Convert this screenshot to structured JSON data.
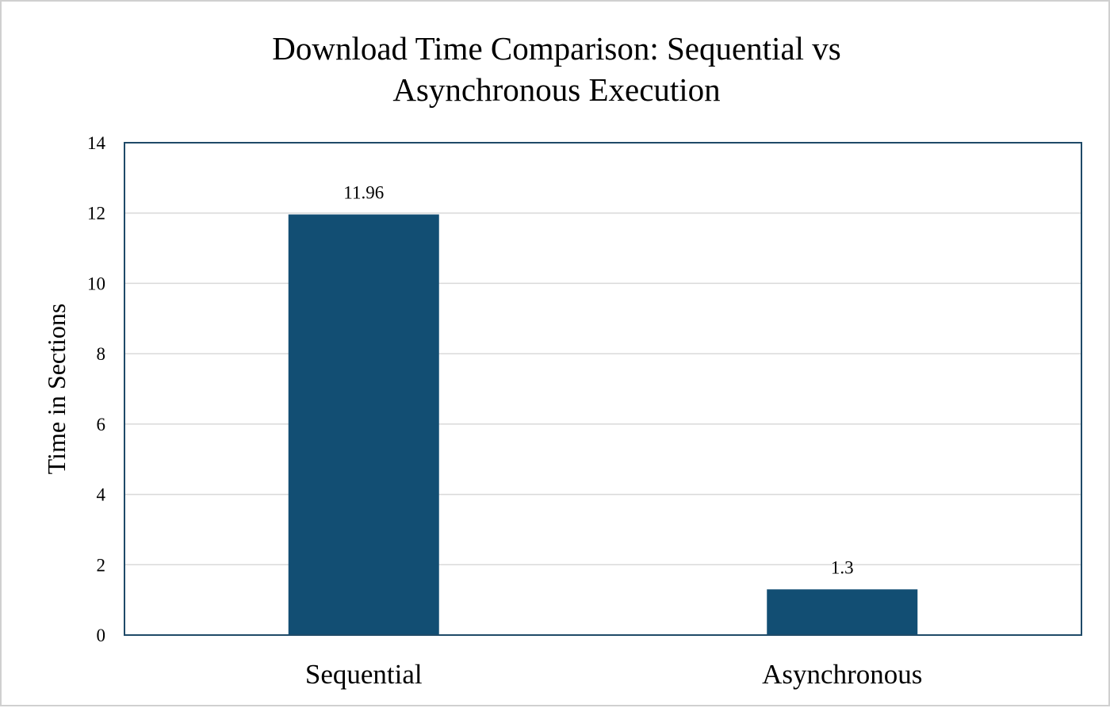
{
  "chart_data": {
    "type": "bar",
    "title_lines": [
      "Download Time Comparison: Sequential vs",
      "Asynchronous Execution"
    ],
    "xlabel": "",
    "ylabel": "Time in Sections",
    "categories": [
      "Sequential",
      "Asynchronous"
    ],
    "values": [
      11.96,
      1.3
    ],
    "data_labels": [
      "11.96",
      "1.3"
    ],
    "ylim": [
      0,
      14
    ],
    "yticks": [
      0,
      2,
      4,
      6,
      8,
      10,
      12,
      14
    ],
    "grid": true,
    "legend": "none",
    "colors": {
      "bar": "#124e73",
      "plot_border": "#1f4a68",
      "grid": "#d9d9d9"
    }
  }
}
